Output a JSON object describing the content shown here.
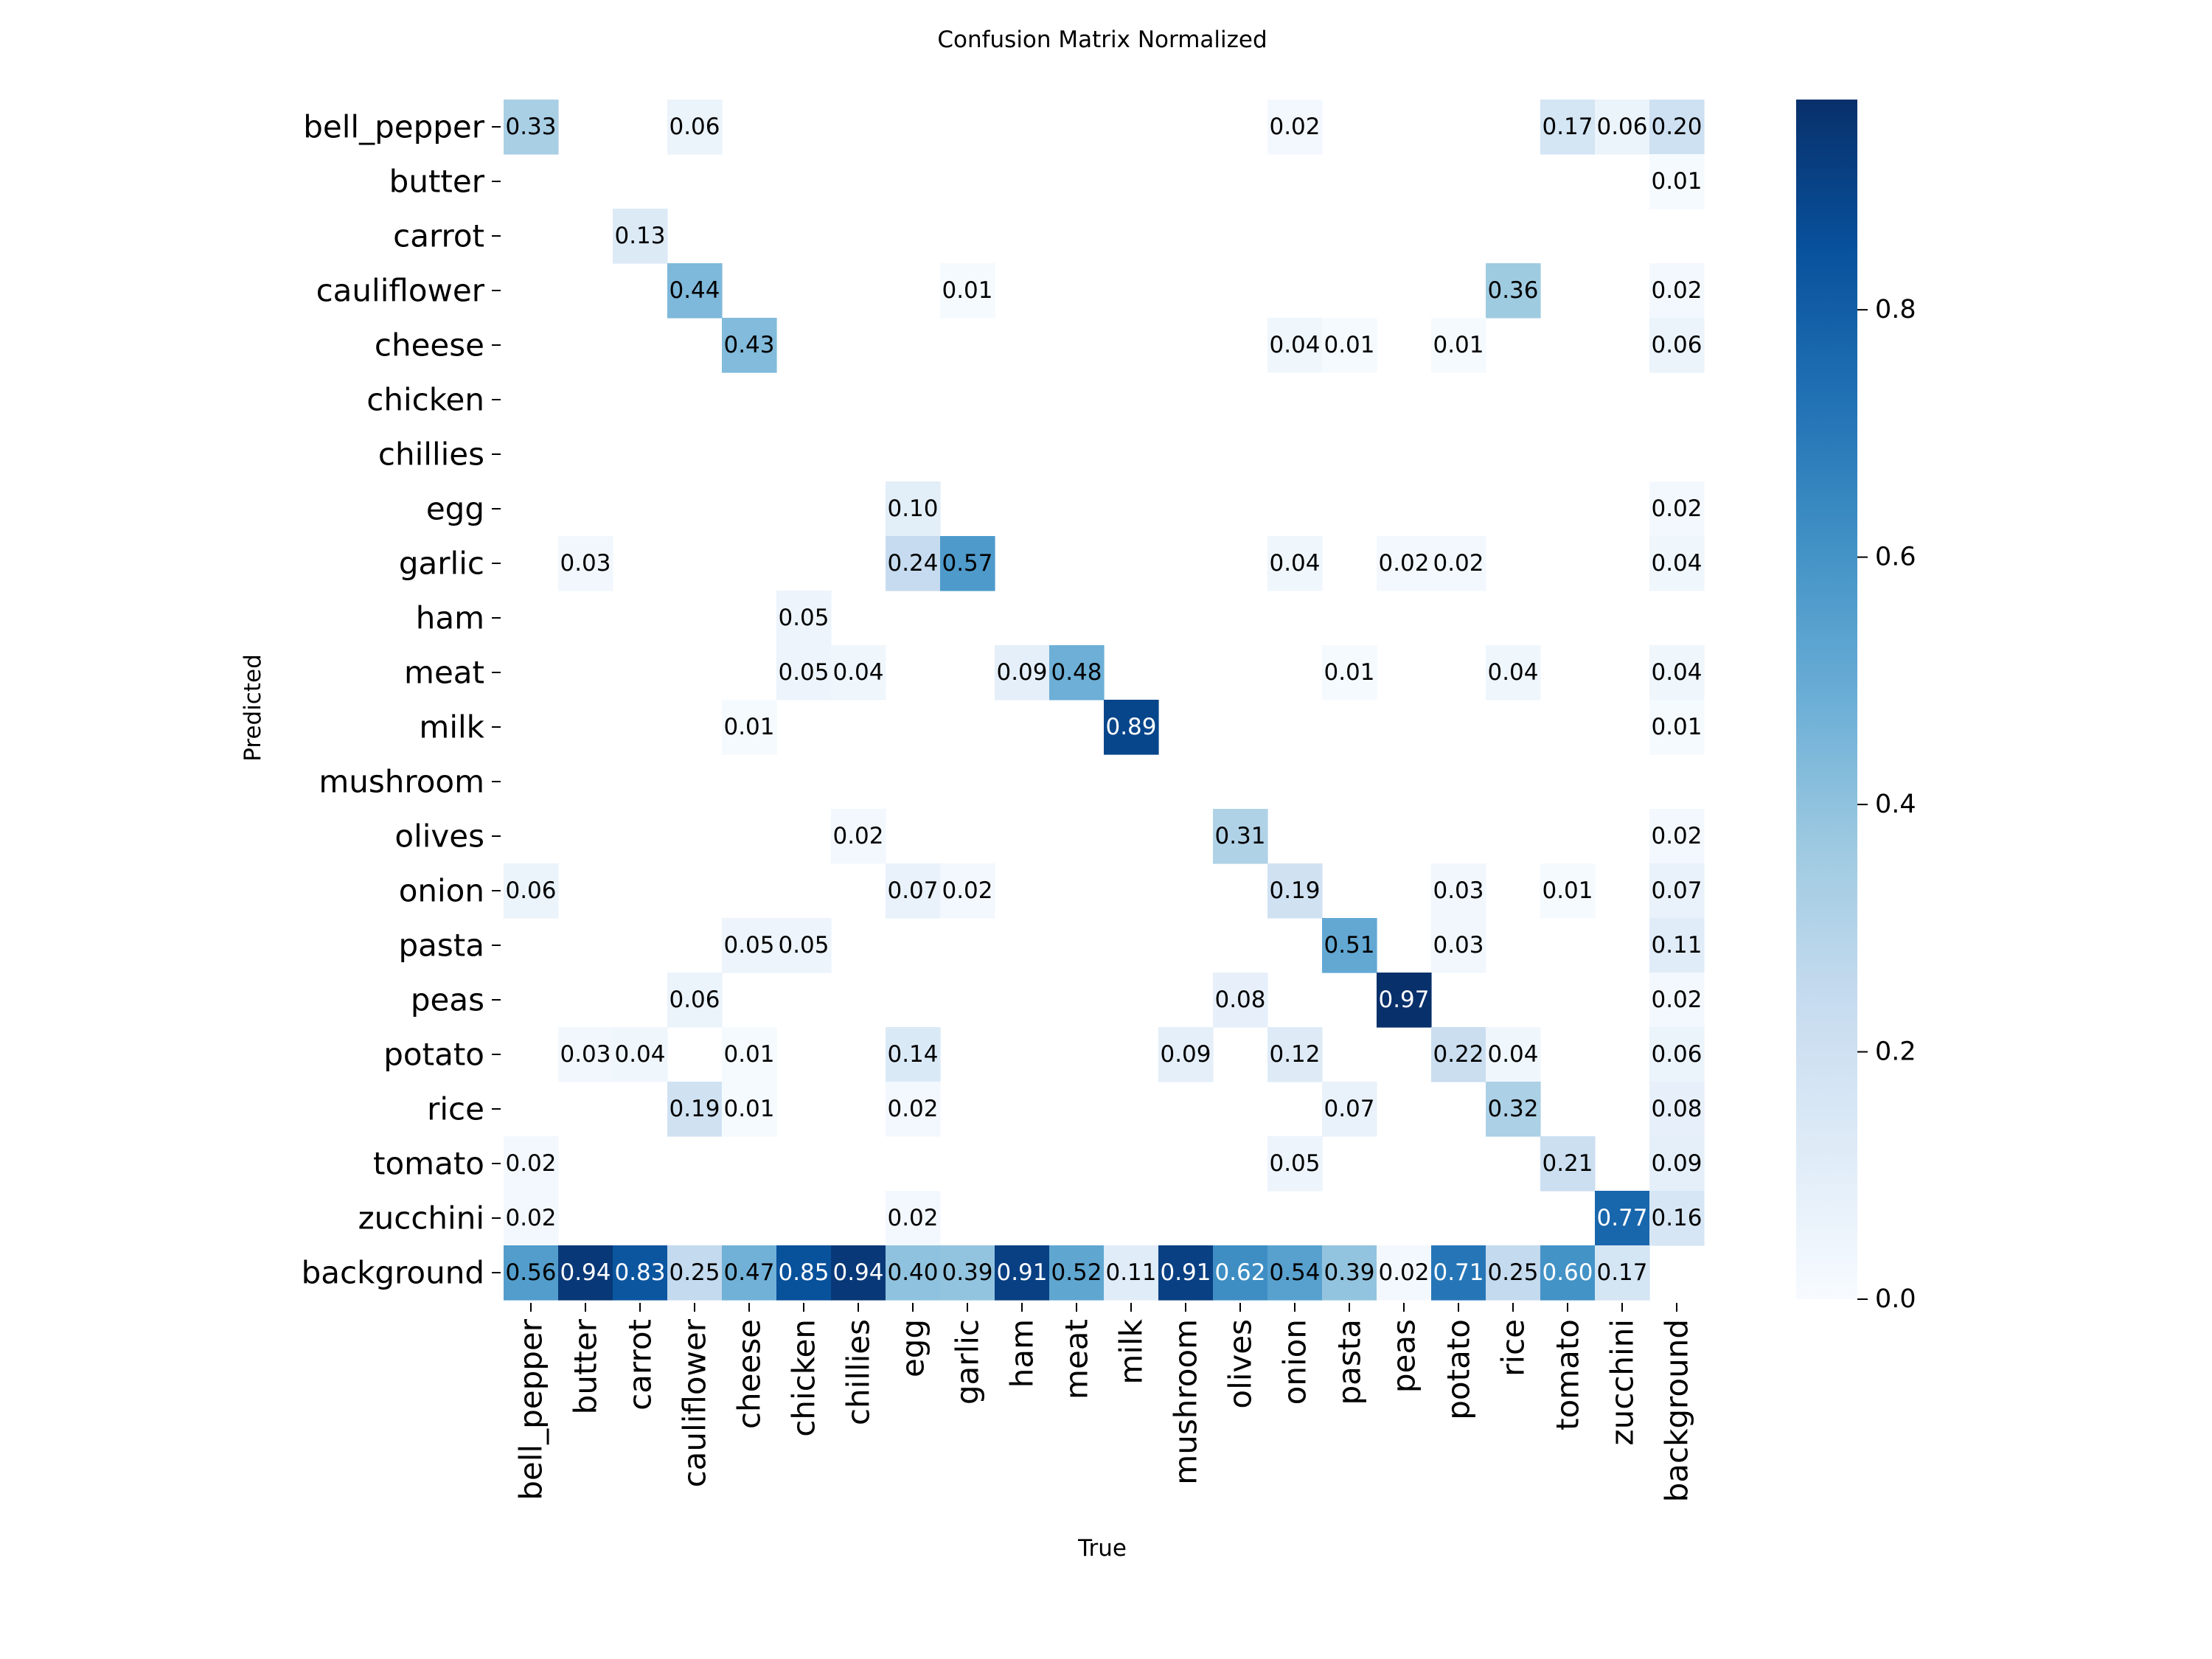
{
  "chart_data": {
    "type": "heatmap",
    "title": "Confusion Matrix Normalized",
    "xlabel": "True",
    "ylabel": "Predicted",
    "x_categories": [
      "bell_pepper",
      "butter",
      "carrot",
      "cauliflower",
      "cheese",
      "chicken",
      "chillies",
      "egg",
      "garlic",
      "ham",
      "meat",
      "milk",
      "mushroom",
      "olives",
      "onion",
      "pasta",
      "peas",
      "potato",
      "rice",
      "tomato",
      "zucchini",
      "background"
    ],
    "y_categories": [
      "bell_pepper",
      "butter",
      "carrot",
      "cauliflower",
      "cheese",
      "chicken",
      "chillies",
      "egg",
      "garlic",
      "ham",
      "meat",
      "milk",
      "mushroom",
      "olives",
      "onion",
      "pasta",
      "peas",
      "potato",
      "rice",
      "tomato",
      "zucchini",
      "background"
    ],
    "cells": [
      {
        "row": 0,
        "col": 0,
        "value": 0.33
      },
      {
        "row": 0,
        "col": 3,
        "value": 0.06
      },
      {
        "row": 0,
        "col": 14,
        "value": 0.02
      },
      {
        "row": 0,
        "col": 19,
        "value": 0.17
      },
      {
        "row": 0,
        "col": 20,
        "value": 0.06
      },
      {
        "row": 0,
        "col": 21,
        "value": 0.2
      },
      {
        "row": 1,
        "col": 21,
        "value": 0.01
      },
      {
        "row": 2,
        "col": 2,
        "value": 0.13
      },
      {
        "row": 3,
        "col": 3,
        "value": 0.44
      },
      {
        "row": 3,
        "col": 8,
        "value": 0.01
      },
      {
        "row": 3,
        "col": 18,
        "value": 0.36
      },
      {
        "row": 3,
        "col": 21,
        "value": 0.02
      },
      {
        "row": 4,
        "col": 4,
        "value": 0.43
      },
      {
        "row": 4,
        "col": 14,
        "value": 0.04
      },
      {
        "row": 4,
        "col": 15,
        "value": 0.01
      },
      {
        "row": 4,
        "col": 17,
        "value": 0.01
      },
      {
        "row": 4,
        "col": 21,
        "value": 0.06
      },
      {
        "row": 7,
        "col": 7,
        "value": 0.1
      },
      {
        "row": 7,
        "col": 21,
        "value": 0.02
      },
      {
        "row": 8,
        "col": 1,
        "value": 0.03
      },
      {
        "row": 8,
        "col": 7,
        "value": 0.24
      },
      {
        "row": 8,
        "col": 8,
        "value": 0.57
      },
      {
        "row": 8,
        "col": 14,
        "value": 0.04
      },
      {
        "row": 8,
        "col": 16,
        "value": 0.02
      },
      {
        "row": 8,
        "col": 17,
        "value": 0.02
      },
      {
        "row": 8,
        "col": 21,
        "value": 0.04
      },
      {
        "row": 9,
        "col": 5,
        "value": 0.05
      },
      {
        "row": 10,
        "col": 5,
        "value": 0.05
      },
      {
        "row": 10,
        "col": 6,
        "value": 0.04
      },
      {
        "row": 10,
        "col": 9,
        "value": 0.09
      },
      {
        "row": 10,
        "col": 10,
        "value": 0.48
      },
      {
        "row": 10,
        "col": 15,
        "value": 0.01
      },
      {
        "row": 10,
        "col": 18,
        "value": 0.04
      },
      {
        "row": 10,
        "col": 21,
        "value": 0.04
      },
      {
        "row": 11,
        "col": 4,
        "value": 0.01
      },
      {
        "row": 11,
        "col": 11,
        "value": 0.89
      },
      {
        "row": 11,
        "col": 21,
        "value": 0.01
      },
      {
        "row": 13,
        "col": 6,
        "value": 0.02
      },
      {
        "row": 13,
        "col": 13,
        "value": 0.31
      },
      {
        "row": 13,
        "col": 21,
        "value": 0.02
      },
      {
        "row": 14,
        "col": 0,
        "value": 0.06
      },
      {
        "row": 14,
        "col": 7,
        "value": 0.07
      },
      {
        "row": 14,
        "col": 8,
        "value": 0.02
      },
      {
        "row": 14,
        "col": 14,
        "value": 0.19
      },
      {
        "row": 14,
        "col": 17,
        "value": 0.03
      },
      {
        "row": 14,
        "col": 19,
        "value": 0.01
      },
      {
        "row": 14,
        "col": 21,
        "value": 0.07
      },
      {
        "row": 15,
        "col": 4,
        "value": 0.05
      },
      {
        "row": 15,
        "col": 5,
        "value": 0.05
      },
      {
        "row": 15,
        "col": 15,
        "value": 0.51
      },
      {
        "row": 15,
        "col": 17,
        "value": 0.03
      },
      {
        "row": 15,
        "col": 21,
        "value": 0.11
      },
      {
        "row": 16,
        "col": 3,
        "value": 0.06
      },
      {
        "row": 16,
        "col": 13,
        "value": 0.08
      },
      {
        "row": 16,
        "col": 16,
        "value": 0.97
      },
      {
        "row": 16,
        "col": 21,
        "value": 0.02
      },
      {
        "row": 17,
        "col": 1,
        "value": 0.03
      },
      {
        "row": 17,
        "col": 2,
        "value": 0.04
      },
      {
        "row": 17,
        "col": 4,
        "value": 0.01
      },
      {
        "row": 17,
        "col": 7,
        "value": 0.14
      },
      {
        "row": 17,
        "col": 12,
        "value": 0.09
      },
      {
        "row": 17,
        "col": 14,
        "value": 0.12
      },
      {
        "row": 17,
        "col": 17,
        "value": 0.22
      },
      {
        "row": 17,
        "col": 18,
        "value": 0.04
      },
      {
        "row": 17,
        "col": 21,
        "value": 0.06
      },
      {
        "row": 18,
        "col": 3,
        "value": 0.19
      },
      {
        "row": 18,
        "col": 4,
        "value": 0.01
      },
      {
        "row": 18,
        "col": 7,
        "value": 0.02
      },
      {
        "row": 18,
        "col": 15,
        "value": 0.07
      },
      {
        "row": 18,
        "col": 18,
        "value": 0.32
      },
      {
        "row": 18,
        "col": 21,
        "value": 0.08
      },
      {
        "row": 19,
        "col": 0,
        "value": 0.02
      },
      {
        "row": 19,
        "col": 14,
        "value": 0.05
      },
      {
        "row": 19,
        "col": 19,
        "value": 0.21
      },
      {
        "row": 19,
        "col": 21,
        "value": 0.09
      },
      {
        "row": 20,
        "col": 0,
        "value": 0.02
      },
      {
        "row": 20,
        "col": 7,
        "value": 0.02
      },
      {
        "row": 20,
        "col": 20,
        "value": 0.77
      },
      {
        "row": 20,
        "col": 21,
        "value": 0.16
      },
      {
        "row": 21,
        "col": 0,
        "value": 0.56
      },
      {
        "row": 21,
        "col": 1,
        "value": 0.94
      },
      {
        "row": 21,
        "col": 2,
        "value": 0.83
      },
      {
        "row": 21,
        "col": 3,
        "value": 0.25
      },
      {
        "row": 21,
        "col": 4,
        "value": 0.47
      },
      {
        "row": 21,
        "col": 5,
        "value": 0.85
      },
      {
        "row": 21,
        "col": 6,
        "value": 0.94
      },
      {
        "row": 21,
        "col": 7,
        "value": 0.4
      },
      {
        "row": 21,
        "col": 8,
        "value": 0.39
      },
      {
        "row": 21,
        "col": 9,
        "value": 0.91
      },
      {
        "row": 21,
        "col": 10,
        "value": 0.52
      },
      {
        "row": 21,
        "col": 11,
        "value": 0.11
      },
      {
        "row": 21,
        "col": 12,
        "value": 0.91
      },
      {
        "row": 21,
        "col": 13,
        "value": 0.62
      },
      {
        "row": 21,
        "col": 14,
        "value": 0.54
      },
      {
        "row": 21,
        "col": 15,
        "value": 0.39
      },
      {
        "row": 21,
        "col": 16,
        "value": 0.02
      },
      {
        "row": 21,
        "col": 17,
        "value": 0.71
      },
      {
        "row": 21,
        "col": 18,
        "value": 0.25
      },
      {
        "row": 21,
        "col": 19,
        "value": 0.6
      },
      {
        "row": 21,
        "col": 20,
        "value": 0.17
      }
    ],
    "value_range": [
      0.0,
      0.97
    ],
    "colormap": "Blues",
    "colorbar": {
      "ticks": [
        0.0,
        0.2,
        0.4,
        0.6,
        0.8
      ],
      "tick_labels": [
        "0.0",
        "0.2",
        "0.4",
        "0.6",
        "0.8"
      ]
    },
    "grid": false,
    "legend": "colorbar-right"
  }
}
